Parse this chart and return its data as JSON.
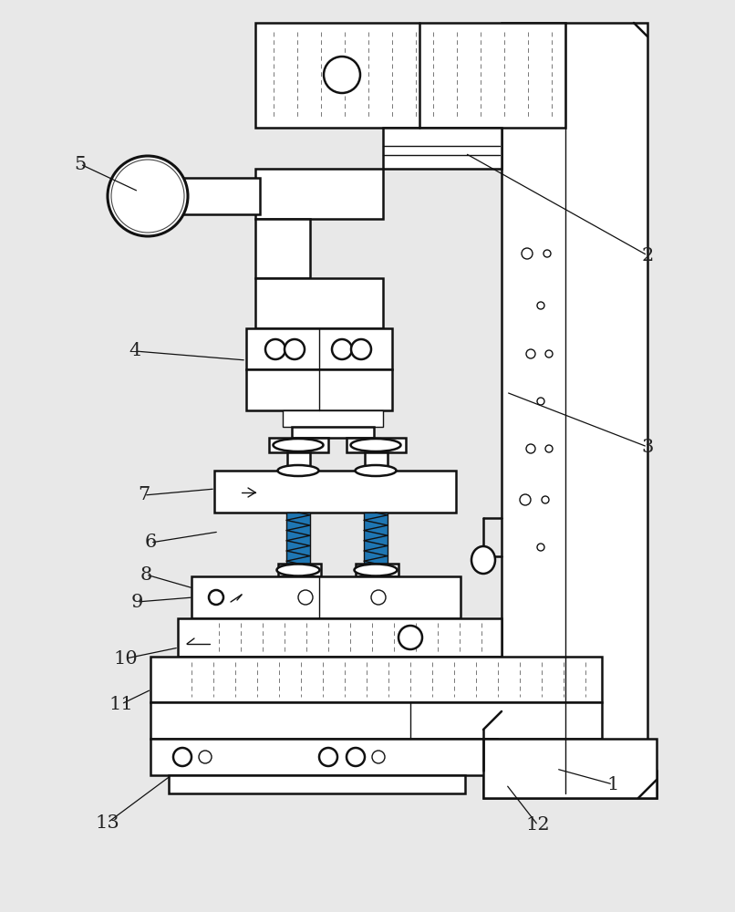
{
  "background_color": "#e8e8e8",
  "line_color": "#111111",
  "label_color": "#222222",
  "lw_main": 1.8,
  "lw_thin": 1.0,
  "lw_dash": 0.7
}
